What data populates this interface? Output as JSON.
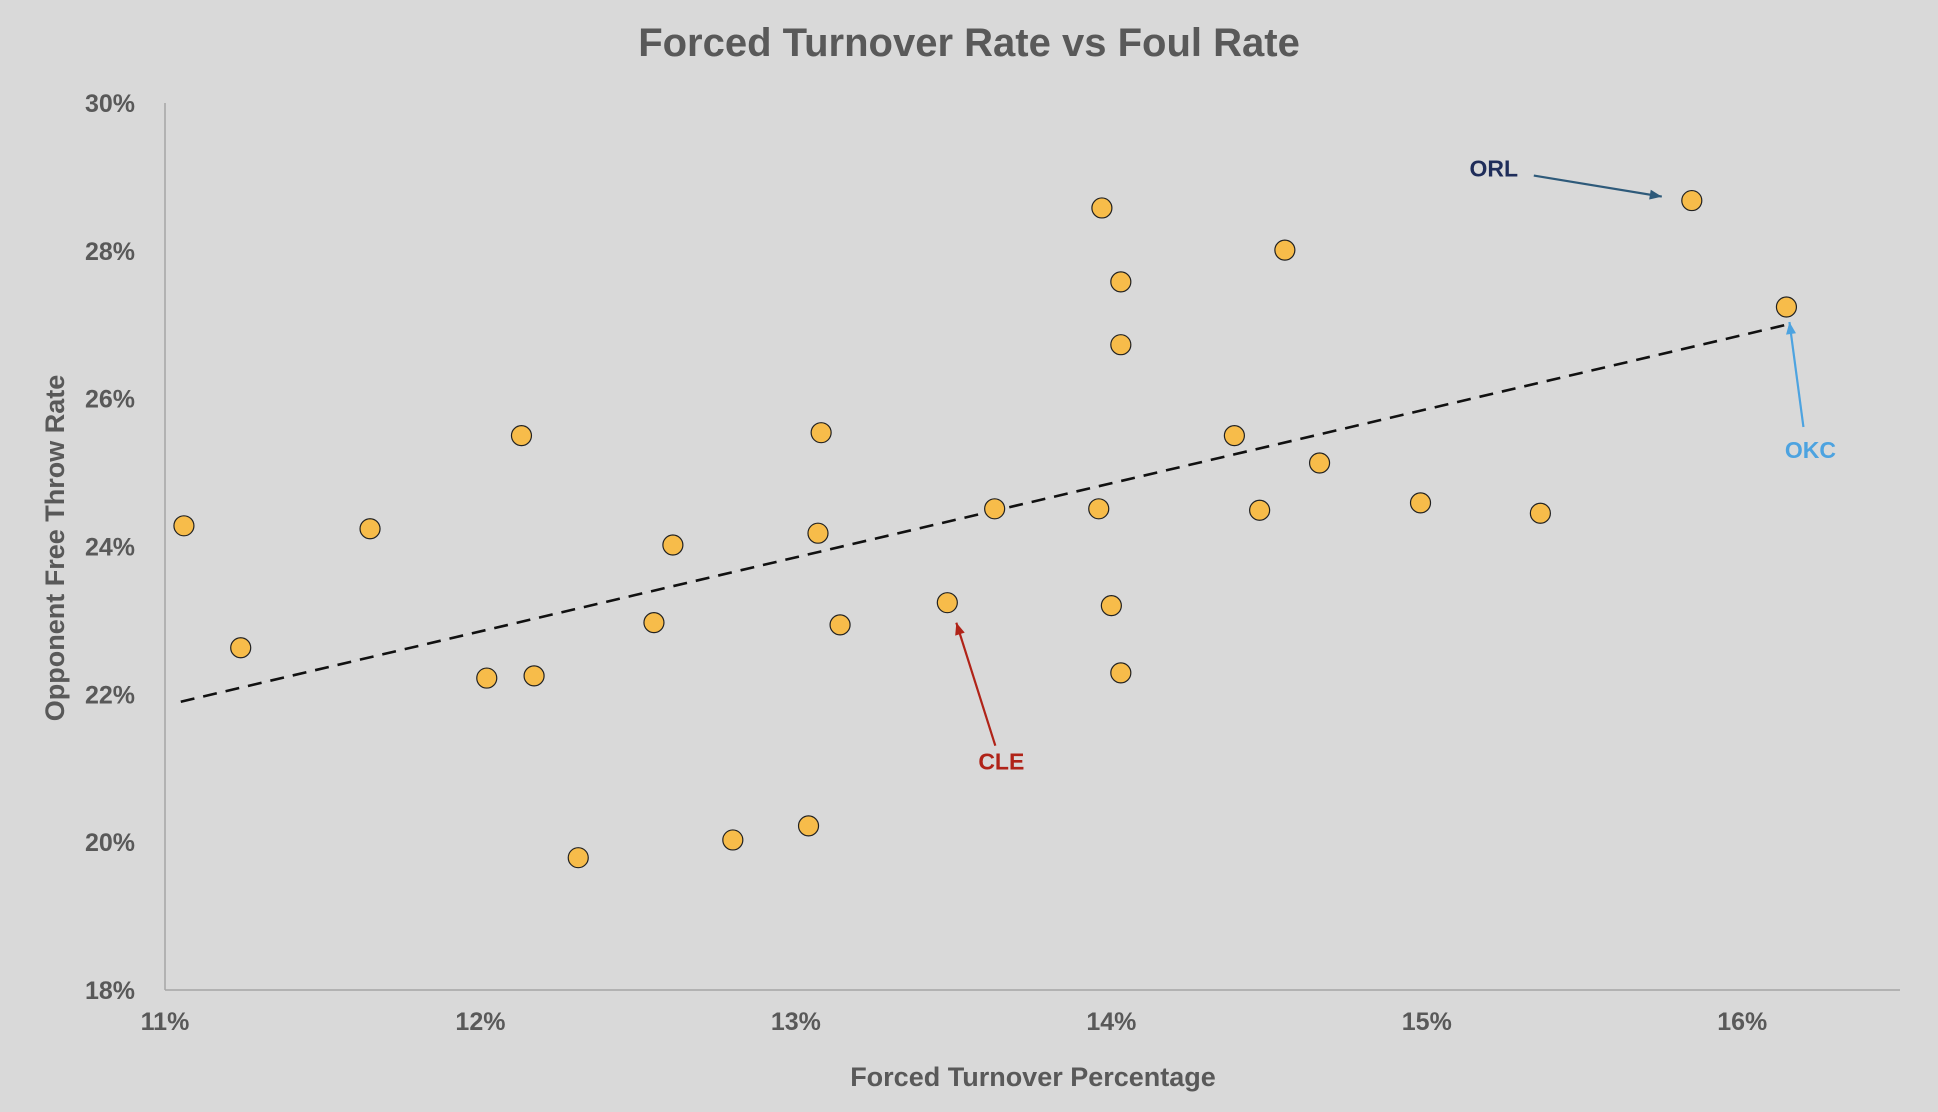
{
  "chart_data": {
    "type": "scatter",
    "title": "Forced Turnover Rate vs  Foul Rate",
    "xlabel": "Forced Turnover Percentage",
    "ylabel": "Opponent Free Throw Rate",
    "xlim": [
      11,
      16.5
    ],
    "ylim": [
      18,
      30
    ],
    "x_ticks": [
      11,
      12,
      13,
      14,
      15,
      16
    ],
    "y_ticks": [
      18,
      20,
      22,
      24,
      26,
      28,
      30
    ],
    "x_tick_labels": [
      "11%",
      "12%",
      "13%",
      "14%",
      "15%",
      "16%"
    ],
    "y_tick_labels": [
      "18%",
      "20%",
      "22%",
      "24%",
      "26%",
      "28%",
      "30%"
    ],
    "grid": false,
    "legend": "none",
    "points": [
      {
        "x": 11.06,
        "y": 24.28
      },
      {
        "x": 11.24,
        "y": 22.63
      },
      {
        "x": 11.65,
        "y": 24.24
      },
      {
        "x": 12.02,
        "y": 22.22
      },
      {
        "x": 12.13,
        "y": 25.5
      },
      {
        "x": 12.17,
        "y": 22.25
      },
      {
        "x": 12.31,
        "y": 19.79
      },
      {
        "x": 12.55,
        "y": 22.97
      },
      {
        "x": 12.61,
        "y": 24.02
      },
      {
        "x": 12.8,
        "y": 20.03
      },
      {
        "x": 13.04,
        "y": 20.22
      },
      {
        "x": 13.07,
        "y": 24.18
      },
      {
        "x": 13.08,
        "y": 25.54
      },
      {
        "x": 13.14,
        "y": 22.94
      },
      {
        "x": 13.48,
        "y": 23.24,
        "label": "CLE"
      },
      {
        "x": 13.63,
        "y": 24.51
      },
      {
        "x": 13.96,
        "y": 24.51
      },
      {
        "x": 13.97,
        "y": 28.58
      },
      {
        "x": 14.0,
        "y": 23.2
      },
      {
        "x": 14.03,
        "y": 27.58
      },
      {
        "x": 14.03,
        "y": 26.73
      },
      {
        "x": 14.03,
        "y": 22.29
      },
      {
        "x": 14.39,
        "y": 25.5
      },
      {
        "x": 14.47,
        "y": 24.49
      },
      {
        "x": 14.55,
        "y": 28.01
      },
      {
        "x": 14.66,
        "y": 25.13
      },
      {
        "x": 14.98,
        "y": 24.59
      },
      {
        "x": 15.36,
        "y": 24.45
      },
      {
        "x": 15.84,
        "y": 28.68,
        "label": "ORL"
      },
      {
        "x": 16.14,
        "y": 27.24,
        "label": "OKC"
      }
    ],
    "trendline": {
      "style": "dashed",
      "x": [
        11.05,
        16.14
      ],
      "y": [
        21.9,
        27.0
      ]
    },
    "annotations": [
      {
        "text": "ORL",
        "color": "#1f2d5a",
        "arrow_color": "#2e5a7a",
        "target_index": 28
      },
      {
        "text": "OKC",
        "color": "#4da3e0",
        "arrow_color": "#4da3e0",
        "target_index": 29
      },
      {
        "text": "CLE",
        "color": "#b02318",
        "arrow_color": "#b02318",
        "target_index": 14
      }
    ],
    "colors": {
      "background": "#d9d9d9",
      "marker_fill": "#f7bc4a",
      "marker_stroke": "#222222",
      "text": "#595959",
      "axis": "#a6a6a6",
      "trendline": "#111111"
    }
  }
}
